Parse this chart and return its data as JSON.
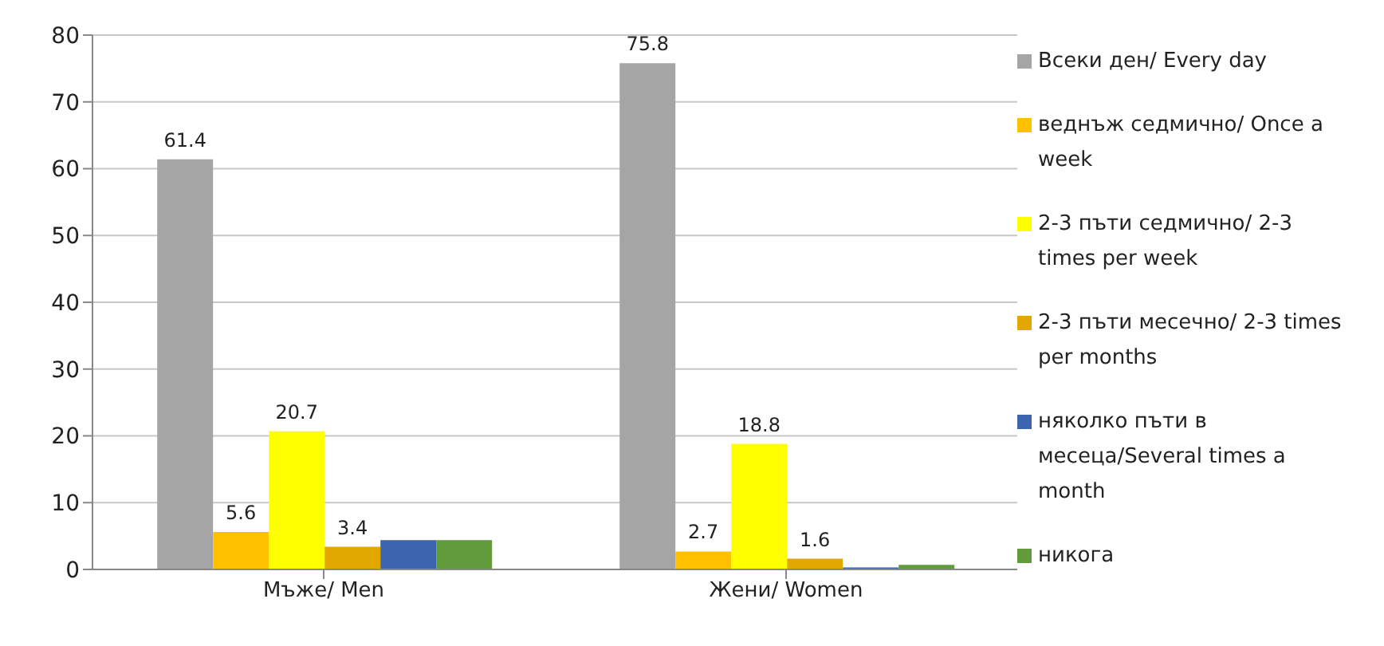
{
  "chart_data": {
    "type": "bar",
    "categories": [
      "Мъже/  Men",
      "Жени/  Women"
    ],
    "series": [
      {
        "name": "Всеки ден/ Every day",
        "color": "#a5a5a5",
        "values": [
          61.4,
          75.8
        ],
        "value_labels": [
          "61.4",
          "75.8"
        ]
      },
      {
        "name": "веднъж  седмично/ Once a week",
        "color": "#ffc000",
        "values": [
          5.6,
          2.7
        ],
        "value_labels": [
          "5.6",
          "2.7"
        ]
      },
      {
        "name": "2-3 пъти седмично/ 2-3 times per week",
        "color": "#ffff00",
        "values": [
          20.7,
          18.8
        ],
        "value_labels": [
          "20.7",
          "18.8"
        ]
      },
      {
        "name": "2-3 пъти месечно/ 2-3 times per months",
        "color": "#e2a700",
        "values": [
          3.4,
          1.6
        ],
        "value_labels": [
          "3.4",
          "1.6"
        ]
      },
      {
        "name": "няколко пъти в месеца/Several times a month",
        "color": "#3d64ae",
        "values": [
          4.4,
          0.3
        ],
        "value_labels": [
          null,
          null
        ]
      },
      {
        "name": "никога",
        "color": "#629b3c",
        "values": [
          4.4,
          0.7
        ],
        "value_labels": [
          null,
          null
        ]
      }
    ],
    "ylim": [
      0,
      80
    ],
    "yticks": [
      0,
      10,
      20,
      30,
      40,
      50,
      60,
      70,
      80
    ],
    "grid": "y",
    "legend": "right"
  }
}
